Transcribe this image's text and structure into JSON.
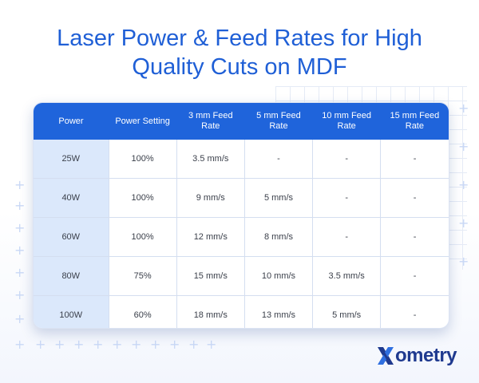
{
  "title": "Laser Power & Feed Rates for High Quality Cuts on MDF",
  "table": {
    "headers": [
      "Power",
      "Power Setting",
      "3 mm Feed Rate",
      "5 mm Feed Rate",
      "10 mm Feed Rate",
      "15 mm Feed Rate"
    ],
    "rows": [
      [
        "25W",
        "100%",
        "3.5 mm/s",
        "-",
        "-",
        "-"
      ],
      [
        "40W",
        "100%",
        "9 mm/s",
        "5 mm/s",
        "-",
        "-"
      ],
      [
        "60W",
        "100%",
        "12 mm/s",
        "8 mm/s",
        "-",
        "-"
      ],
      [
        "80W",
        "75%",
        "15 mm/s",
        "10 mm/s",
        "3.5 mm/s",
        "-"
      ],
      [
        "100W",
        "60%",
        "18 mm/s",
        "13 mm/s",
        "5 mm/s",
        "-"
      ]
    ]
  },
  "brand": {
    "logo_icon": "x-logo-icon",
    "logo_text": "ometry",
    "color_primary": "#1f64db",
    "color_dark": "#1f3a8f",
    "color_first_col": "#dbe8fb"
  }
}
